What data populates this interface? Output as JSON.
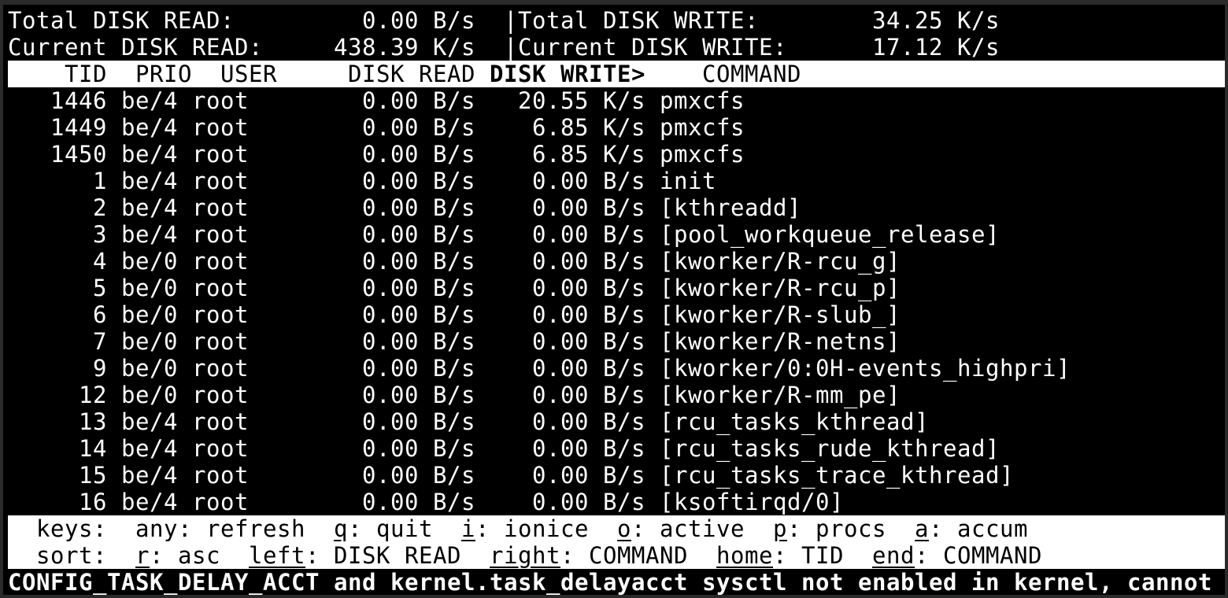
{
  "stats": {
    "total_read_label": "Total DISK READ:",
    "total_read": "0.00 B/s",
    "separator": "|",
    "total_write_label": "Total DISK WRITE:",
    "total_write": "34.25 K/s",
    "current_read_label": "Current DISK READ:",
    "current_read": "438.39 K/s",
    "current_write_label": "Current DISK WRITE:",
    "current_write": "17.12 K/s"
  },
  "columns": [
    "TID",
    "PRIO",
    "USER",
    "DISK READ",
    "DISK WRITE>",
    "COMMAND"
  ],
  "sort_column": 4,
  "rows": [
    [
      "1446",
      "be/4",
      "root",
      "0.00 B/s",
      "20.55 K/s",
      "pmxcfs"
    ],
    [
      "1449",
      "be/4",
      "root",
      "0.00 B/s",
      "6.85 K/s",
      "pmxcfs"
    ],
    [
      "1450",
      "be/4",
      "root",
      "0.00 B/s",
      "6.85 K/s",
      "pmxcfs"
    ],
    [
      "1",
      "be/4",
      "root",
      "0.00 B/s",
      "0.00 B/s",
      "init"
    ],
    [
      "2",
      "be/4",
      "root",
      "0.00 B/s",
      "0.00 B/s",
      "[kthreadd]"
    ],
    [
      "3",
      "be/4",
      "root",
      "0.00 B/s",
      "0.00 B/s",
      "[pool_workqueue_release]"
    ],
    [
      "4",
      "be/0",
      "root",
      "0.00 B/s",
      "0.00 B/s",
      "[kworker/R-rcu_g]"
    ],
    [
      "5",
      "be/0",
      "root",
      "0.00 B/s",
      "0.00 B/s",
      "[kworker/R-rcu_p]"
    ],
    [
      "6",
      "be/0",
      "root",
      "0.00 B/s",
      "0.00 B/s",
      "[kworker/R-slub_]"
    ],
    [
      "7",
      "be/0",
      "root",
      "0.00 B/s",
      "0.00 B/s",
      "[kworker/R-netns]"
    ],
    [
      "9",
      "be/0",
      "root",
      "0.00 B/s",
      "0.00 B/s",
      "[kworker/0:0H-events_highpri]"
    ],
    [
      "12",
      "be/0",
      "root",
      "0.00 B/s",
      "0.00 B/s",
      "[kworker/R-mm_pe]"
    ],
    [
      "13",
      "be/4",
      "root",
      "0.00 B/s",
      "0.00 B/s",
      "[rcu_tasks_kthread]"
    ],
    [
      "14",
      "be/4",
      "root",
      "0.00 B/s",
      "0.00 B/s",
      "[rcu_tasks_rude_kthread]"
    ],
    [
      "15",
      "be/4",
      "root",
      "0.00 B/s",
      "0.00 B/s",
      "[rcu_tasks_trace_kthread]"
    ],
    [
      "16",
      "be/4",
      "root",
      "0.00 B/s",
      "0.00 B/s",
      "[ksoftirqd/0]"
    ]
  ],
  "keys": {
    "label": "keys:",
    "items": [
      {
        "key": "any",
        "text": ": refresh",
        "underline": false
      },
      {
        "key": "q",
        "text": ": quit",
        "underline": true
      },
      {
        "key": "i",
        "text": ": ionice",
        "underline": true
      },
      {
        "key": "o",
        "text": ": active",
        "underline": true
      },
      {
        "key": "p",
        "text": ": procs",
        "underline": true
      },
      {
        "key": "a",
        "text": ": accum",
        "underline": true
      }
    ]
  },
  "sort": {
    "label": "sort:",
    "items": [
      {
        "key": "r",
        "text": ": asc",
        "underline": true
      },
      {
        "key": "left",
        "text": ": DISK READ",
        "underline": true
      },
      {
        "key": "right",
        "text": ": COMMAND",
        "underline": true
      },
      {
        "key": "home",
        "text": ": TID",
        "underline": true
      },
      {
        "key": "end",
        "text": ": COMMAND",
        "underline": true
      }
    ]
  },
  "message": "CONFIG_TASK_DELAY_ACCT and kernel.task_delayacct sysctl not enabled in kernel, cannot"
}
